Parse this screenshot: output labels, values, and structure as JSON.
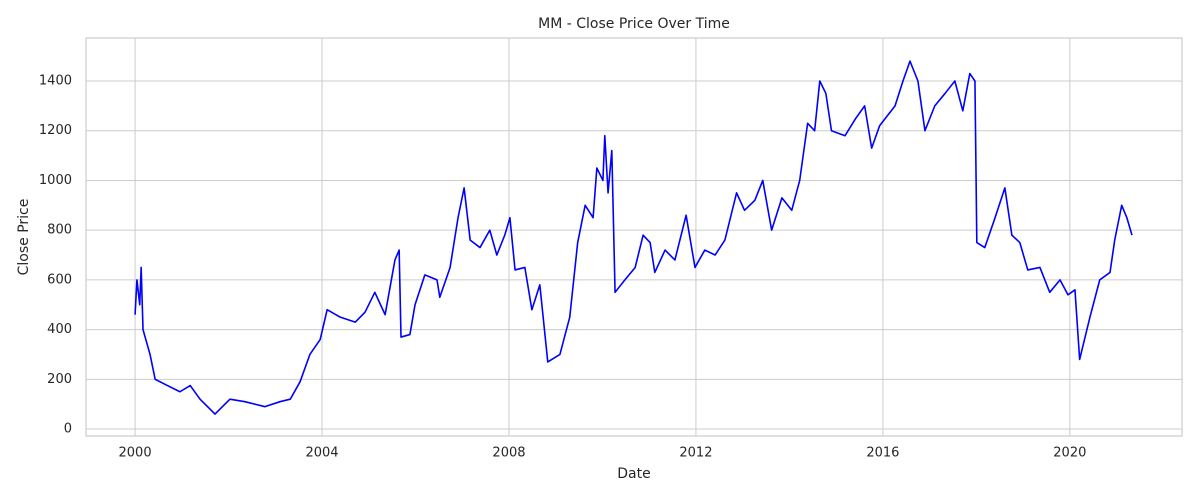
{
  "chart_data": {
    "type": "line",
    "title": "MM - Close Price Over Time",
    "x_label": "Date",
    "y_label": "Close Price",
    "color": "#0000ff",
    "grid": true,
    "xlim": [
      1998.95,
      2022.4
    ],
    "xticks": [
      2000,
      2004,
      2008,
      2012,
      2016,
      2020
    ],
    "ylim": [
      -28,
      1573
    ],
    "yticks": [
      0,
      200,
      400,
      600,
      800,
      1000,
      1200,
      1400
    ],
    "x": [
      2000.0,
      2000.04,
      2000.1,
      2000.13,
      2000.17,
      2000.32,
      2000.43,
      2000.64,
      2000.96,
      2001.18,
      2001.39,
      2001.71,
      2002.03,
      2002.35,
      2002.78,
      2003.1,
      2003.32,
      2003.53,
      2003.74,
      2003.96,
      2004.11,
      2004.39,
      2004.71,
      2004.92,
      2005.13,
      2005.35,
      2005.56,
      2005.65,
      2005.69,
      2005.88,
      2005.99,
      2006.2,
      2006.46,
      2006.52,
      2006.74,
      2006.91,
      2007.04,
      2007.17,
      2007.38,
      2007.59,
      2007.74,
      2007.91,
      2008.02,
      2008.13,
      2008.34,
      2008.49,
      2008.66,
      2008.83,
      2009.09,
      2009.3,
      2009.47,
      2009.63,
      2009.8,
      2009.88,
      2010.01,
      2010.05,
      2010.12,
      2010.2,
      2010.27,
      2010.48,
      2010.7,
      2010.87,
      2011.02,
      2011.12,
      2011.34,
      2011.55,
      2011.79,
      2011.98,
      2012.19,
      2012.41,
      2012.62,
      2012.87,
      2013.04,
      2013.26,
      2013.43,
      2013.62,
      2013.84,
      2014.05,
      2014.22,
      2014.39,
      2014.54,
      2014.65,
      2014.78,
      2014.9,
      2015.19,
      2015.42,
      2015.61,
      2015.76,
      2015.93,
      2016.26,
      2016.43,
      2016.58,
      2016.75,
      2016.9,
      2017.11,
      2017.33,
      2017.54,
      2017.71,
      2017.86,
      2017.97,
      2018.01,
      2018.18,
      2018.4,
      2018.61,
      2018.76,
      2018.93,
      2019.1,
      2019.36,
      2019.57,
      2019.79,
      2019.96,
      2020.11,
      2020.21,
      2020.43,
      2020.64,
      2020.86,
      2020.96,
      2021.11,
      2021.22,
      2021.33
    ],
    "values": [
      460,
      600,
      500,
      650,
      400,
      300,
      200,
      180,
      150,
      175,
      120,
      60,
      120,
      110,
      90,
      110,
      120,
      190,
      300,
      360,
      480,
      450,
      430,
      470,
      550,
      460,
      680,
      720,
      370,
      380,
      500,
      620,
      600,
      530,
      650,
      850,
      970,
      760,
      730,
      800,
      700,
      780,
      850,
      640,
      650,
      480,
      580,
      270,
      300,
      450,
      750,
      900,
      850,
      1050,
      1000,
      1180,
      950,
      1120,
      550,
      600,
      650,
      780,
      750,
      630,
      720,
      680,
      860,
      650,
      720,
      700,
      760,
      950,
      880,
      920,
      1000,
      800,
      930,
      880,
      1000,
      1230,
      1200,
      1400,
      1350,
      1200,
      1180,
      1250,
      1300,
      1130,
      1220,
      1300,
      1400,
      1480,
      1400,
      1200,
      1300,
      1350,
      1400,
      1280,
      1430,
      1400,
      750,
      730,
      850,
      970,
      780,
      750,
      640,
      650,
      550,
      600,
      540,
      560,
      280,
      450,
      600,
      630,
      760,
      900,
      850,
      780
    ]
  }
}
